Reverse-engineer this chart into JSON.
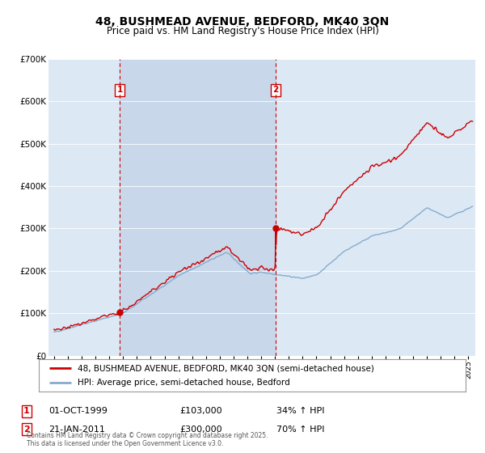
{
  "title": "48, BUSHMEAD AVENUE, BEDFORD, MK40 3QN",
  "subtitle": "Price paid vs. HM Land Registry's House Price Index (HPI)",
  "sale1_price": 103000,
  "sale2_price": 300000,
  "sale1_year": 1999.75,
  "sale2_year": 2011.055,
  "legend_property": "48, BUSHMEAD AVENUE, BEDFORD, MK40 3QN (semi-detached house)",
  "legend_hpi": "HPI: Average price, semi-detached house, Bedford",
  "footer": "Contains HM Land Registry data © Crown copyright and database right 2025.\nThis data is licensed under the Open Government Licence v3.0.",
  "property_color": "#cc0000",
  "hpi_color": "#88aacc",
  "vline_color": "#cc0000",
  "shade_color": "#c8d8ea",
  "bg_color": "#dce9f5",
  "grid_color": "#c0cfe0",
  "ylim": [
    0,
    700000
  ],
  "xlim_min": 1994.6,
  "xlim_max": 2025.5,
  "table_label1": "01-OCT-1999",
  "table_price1": "£103,000",
  "table_label2": "21-JAN-2011",
  "table_price2": "£300,000",
  "sale1_pct": "34% ↑ HPI",
  "sale2_pct": "70% ↑ HPI"
}
